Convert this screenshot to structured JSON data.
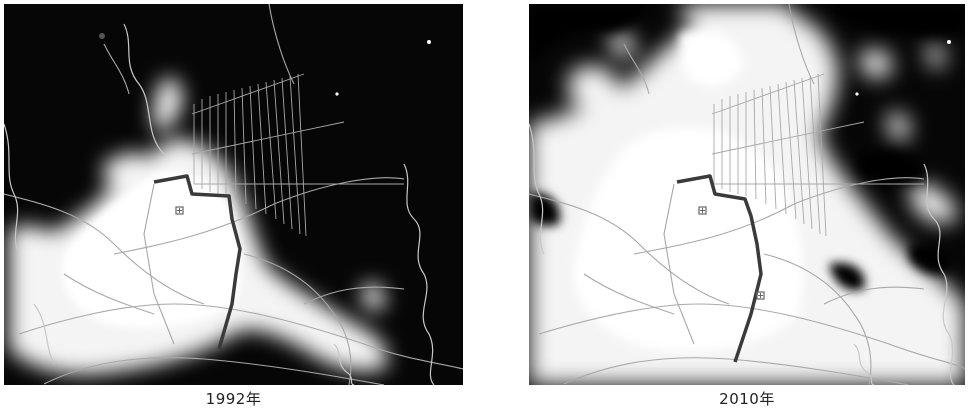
{
  "panels": [
    {
      "id": "1992",
      "caption": "1992年"
    },
    {
      "id": "2010",
      "caption": "2010年"
    }
  ],
  "colors": {
    "background": "#060606",
    "light": "#f4f4f4",
    "road": "#a8a8a8",
    "boundary": "#3a3a3a"
  }
}
